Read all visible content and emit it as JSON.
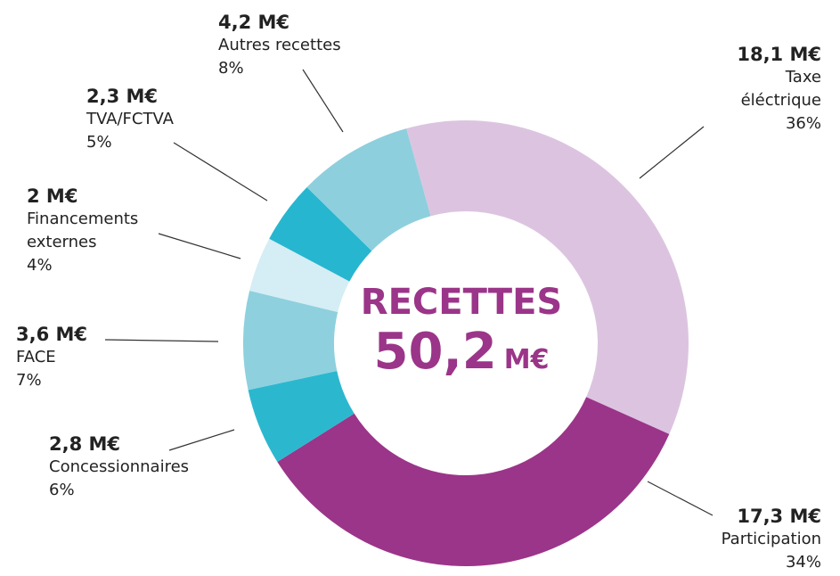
{
  "chart_data": {
    "type": "pie",
    "donut": true,
    "categories": [
      "Taxe éléctrique",
      "Participation",
      "Concessionnaires",
      "FACE",
      "Financements externes",
      "TVA/FCTVA",
      "Autres recettes"
    ],
    "values": [
      18.1,
      17.3,
      2.8,
      3.6,
      2,
      2.3,
      4.2
    ],
    "value_labels": [
      "18,1 M€",
      "17,3 M€",
      "2,8 M€",
      "3,6 M€",
      "2 M€",
      "2,3 M€",
      "4,2 M€"
    ],
    "percent_labels": [
      "36%",
      "34%",
      "6%",
      "7%",
      "4%",
      "5%",
      "8%"
    ],
    "colors": [
      "#dcc4e0",
      "#9b3589",
      "#2bb8cf",
      "#8ed0de",
      "#d5edf4",
      "#27b6cf",
      "#8ecfdd"
    ],
    "center": {
      "title": "RECETTES",
      "total": "50,2",
      "unit": "M€"
    }
  }
}
